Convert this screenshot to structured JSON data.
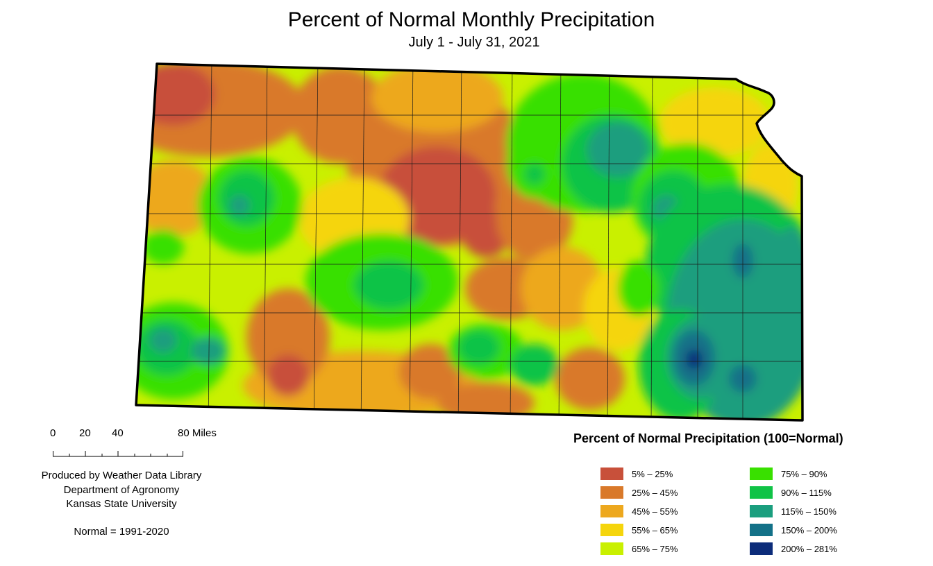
{
  "title": "Percent of Normal Monthly Precipitation",
  "subtitle": "July 1 - July 31, 2021",
  "scale": {
    "labels": [
      "0",
      "20",
      "40",
      "80 Miles"
    ]
  },
  "credits": [
    "Produced by Weather Data Library",
    "Department of Agronomy",
    "Kansas State University"
  ],
  "normal_note": "Normal = 1991-2020",
  "legend": {
    "title": "Percent of Normal Precipitation (100=Normal)",
    "items": [
      {
        "label": "5% – 25%",
        "color": "#c8503a"
      },
      {
        "label": "25% – 45%",
        "color": "#d9792a"
      },
      {
        "label": "45% – 55%",
        "color": "#eda81e"
      },
      {
        "label": "55% – 65%",
        "color": "#f5d50c"
      },
      {
        "label": "65% – 75%",
        "color": "#c9f000"
      },
      {
        "label": "75% – 90%",
        "color": "#39e000"
      },
      {
        "label": "90% – 115%",
        "color": "#10c346"
      },
      {
        "label": "115% – 150%",
        "color": "#1a9e7e"
      },
      {
        "label": "150% – 200%",
        "color": "#137188"
      },
      {
        "label": "200% – 281%",
        "color": "#0c2c7a"
      }
    ]
  }
}
